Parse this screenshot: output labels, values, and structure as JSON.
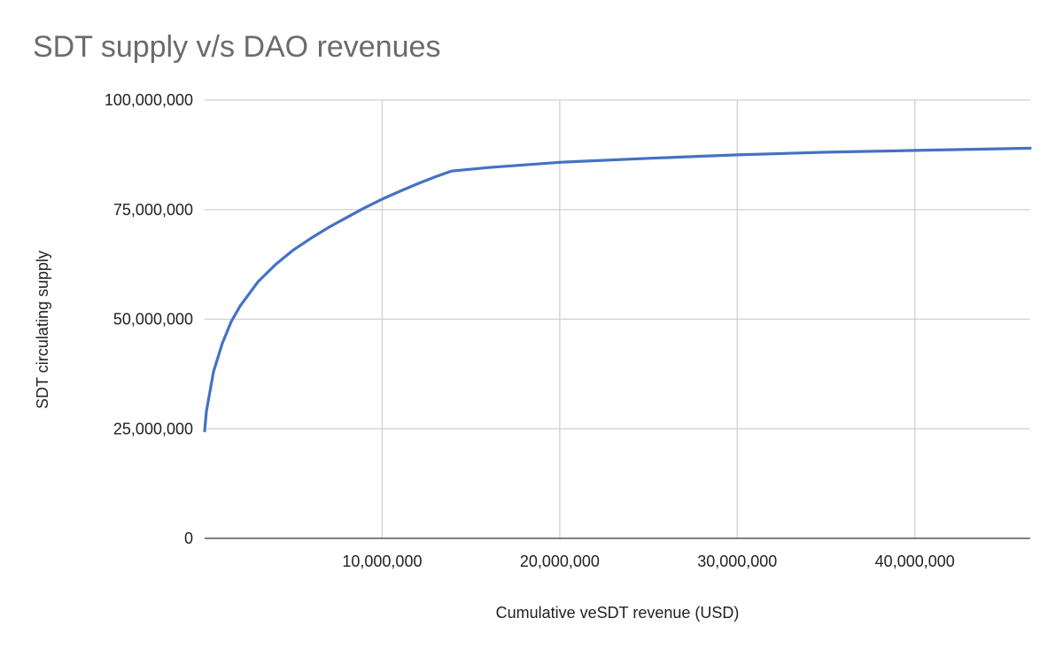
{
  "chart_data": {
    "type": "line",
    "title": "SDT supply v/s DAO revenues",
    "xlabel": "Cumulative veSDT revenue (USD)",
    "ylabel": "SDT circulating supply",
    "xlim": [
      0,
      46500000
    ],
    "ylim": [
      0,
      100000000
    ],
    "x_ticks": [
      10000000,
      20000000,
      30000000,
      40000000
    ],
    "x_tick_labels": [
      "10,000,000",
      "20,000,000",
      "30,000,000",
      "40,000,000"
    ],
    "y_ticks": [
      0,
      25000000,
      50000000,
      75000000,
      100000000
    ],
    "y_tick_labels": [
      "0",
      "25,000,000",
      "50,000,000",
      "75,000,000",
      "100,000,000"
    ],
    "grid": true,
    "series": [
      {
        "name": "SDT circulating supply",
        "color": "#4472c4",
        "x": [
          0,
          100000,
          500000,
          1000000,
          1500000,
          2000000,
          3000000,
          4000000,
          5000000,
          6000000,
          7000000,
          8000000,
          9000000,
          10000000,
          11000000,
          12000000,
          13000000,
          13900000,
          16000000,
          20000000,
          25000000,
          30000000,
          35000000,
          40000000,
          46500000
        ],
        "y": [
          24500000,
          29000000,
          38000000,
          44500000,
          49500000,
          53000000,
          58500000,
          62500000,
          65800000,
          68500000,
          71000000,
          73200000,
          75400000,
          77400000,
          79200000,
          80900000,
          82500000,
          83800000,
          84600000,
          85800000,
          86700000,
          87500000,
          88100000,
          88500000,
          89000000
        ]
      }
    ]
  }
}
